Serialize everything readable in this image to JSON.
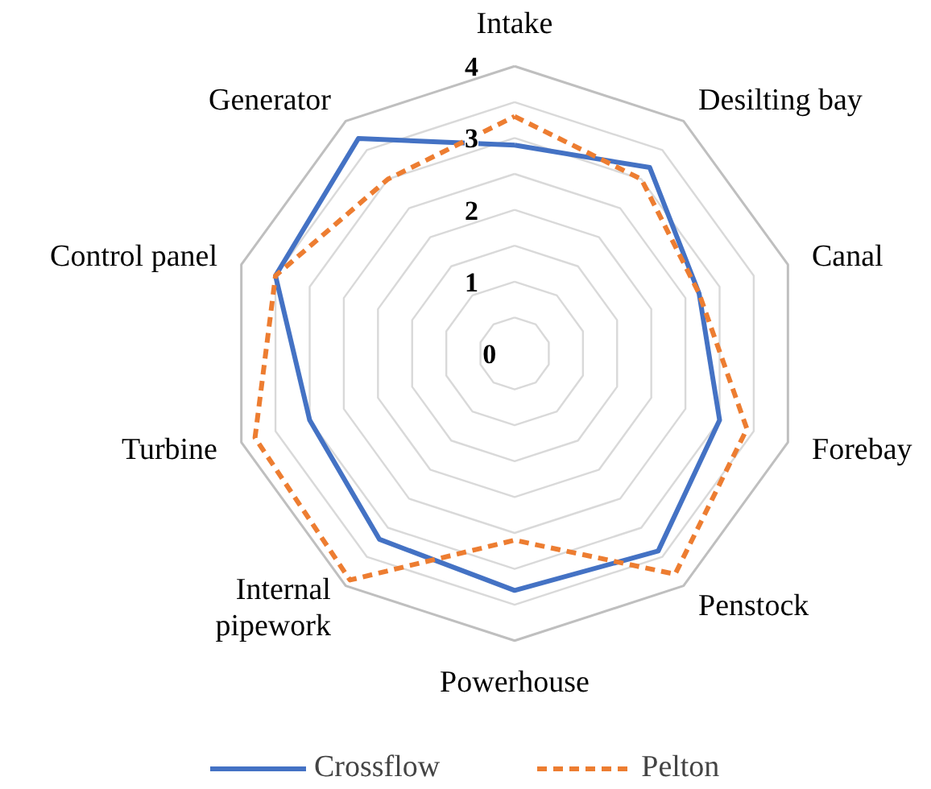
{
  "chart_data": {
    "type": "radar",
    "categories": [
      "Intake",
      "Desilting bay",
      "Canal",
      "Forebay",
      "Penstock",
      "Powerhouse",
      "Internal\npipework",
      "Turbine",
      "Control panel",
      "Generator"
    ],
    "series": [
      {
        "name": "Crossflow",
        "color": "#4472c4",
        "line_style": "solid",
        "values": [
          2.9,
          3.2,
          2.7,
          3.0,
          3.4,
          3.3,
          3.2,
          3.0,
          3.5,
          3.7
        ]
      },
      {
        "name": "Pelton",
        "color": "#ed7d31",
        "line_style": "dashed",
        "values": [
          3.3,
          3.0,
          2.7,
          3.4,
          3.8,
          2.6,
          3.9,
          3.8,
          3.5,
          3.0
        ]
      }
    ],
    "ylim": [
      0,
      4
    ],
    "yticks": [
      0,
      1,
      2,
      3,
      4
    ],
    "grid": true,
    "legend": "bottom",
    "marker": "none"
  }
}
